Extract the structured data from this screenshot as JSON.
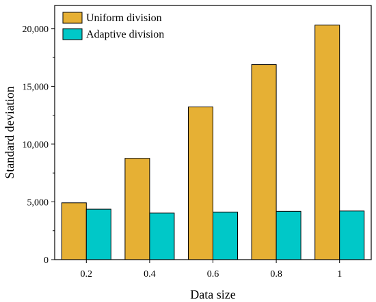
{
  "chart_data": {
    "type": "bar",
    "title": "",
    "xlabel": "Data size",
    "ylabel": "Standard deviation",
    "categories": [
      "0.2",
      "0.4",
      "0.6",
      "0.8",
      "1"
    ],
    "series": [
      {
        "name": "Uniform division",
        "values": [
          4920,
          8770,
          13220,
          16880,
          20300
        ],
        "color": "#E6B034"
      },
      {
        "name": "Adaptive division",
        "values": [
          4370,
          4030,
          4120,
          4180,
          4210
        ],
        "color": "#00C8C8"
      }
    ],
    "ylim": [
      0,
      22000
    ],
    "yticks": [
      0,
      5000,
      10000,
      15000,
      20000
    ],
    "ytick_labels": [
      "0",
      "5,000",
      "10,000",
      "15,000",
      "20,000"
    ],
    "grid": false,
    "legend_position": "top-left"
  }
}
